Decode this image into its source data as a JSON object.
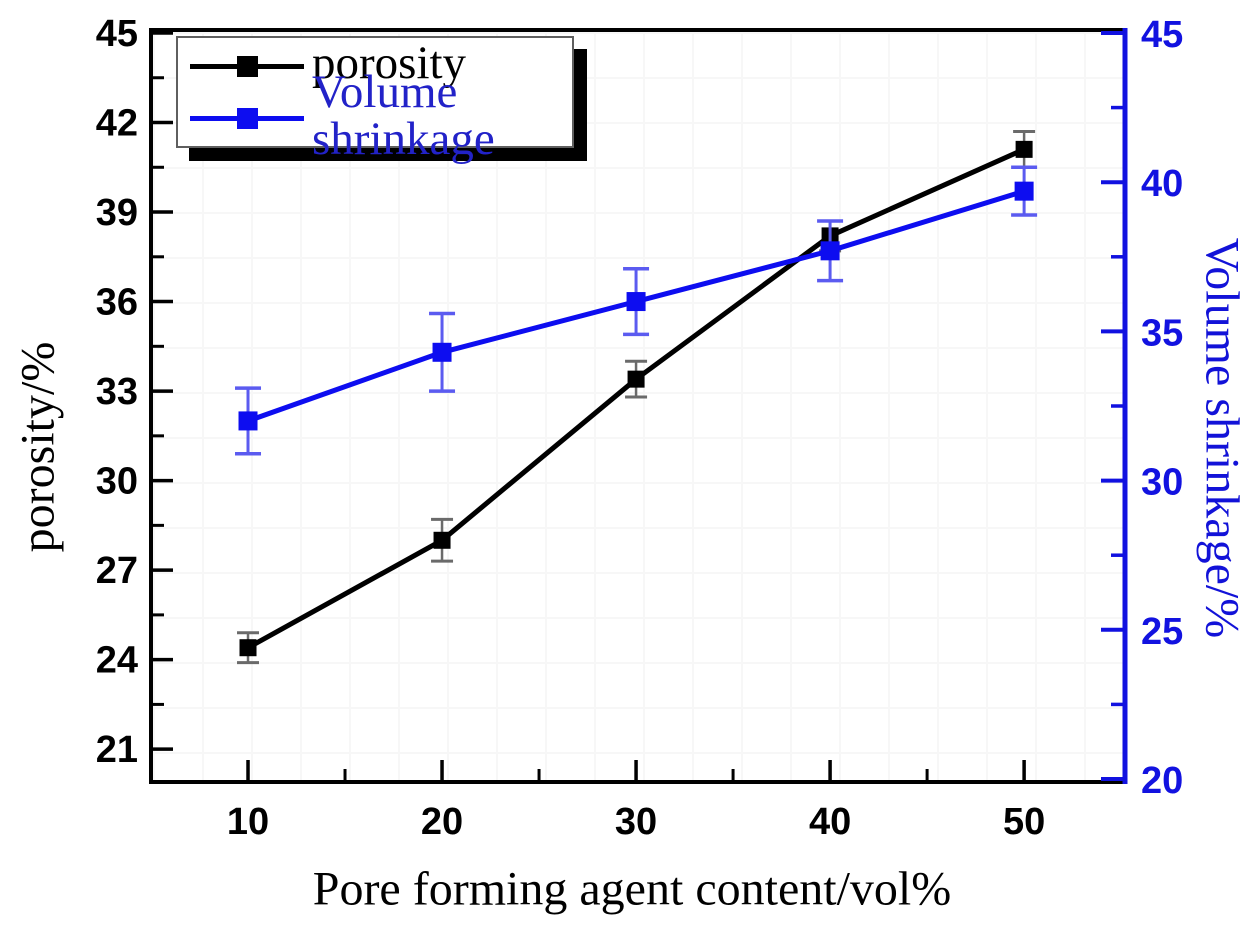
{
  "figure_name": "porosity-volume-shrinkage-line-chart",
  "chart_data": {
    "type": "line",
    "title": "",
    "x": {
      "label": "Pore forming agent content/vol%",
      "ticks": [
        10,
        20,
        30,
        40,
        50
      ],
      "minor_ticks": [
        15,
        25,
        35,
        45
      ],
      "range": [
        5.0,
        55.2
      ]
    },
    "axes": {
      "left": {
        "label": "porosity/%",
        "ticks": [
          21,
          24,
          27,
          30,
          33,
          36,
          39,
          42,
          45
        ],
        "minor_ticks": [
          22.5,
          25.5,
          28.5,
          31.5,
          34.5,
          37.5,
          40.5,
          43.5
        ],
        "range": [
          19.9,
          45.1
        ],
        "color": "#000000"
      },
      "right": {
        "label": "Volume shrinkage/%",
        "ticks": [
          20,
          25,
          30,
          35,
          40,
          45
        ],
        "minor_ticks": [
          22.5,
          27.5,
          32.5,
          37.5,
          42.5
        ],
        "range": [
          19.9,
          45.1
        ],
        "color": "#1111e0"
      }
    },
    "series": [
      {
        "name": "porosity",
        "axis": "left",
        "color": "#000000",
        "error_color": "#6a6a6a",
        "marker": "square",
        "marker_size": 17,
        "x": [
          10,
          20,
          30,
          40,
          50
        ],
        "values": [
          24.4,
          28.0,
          33.4,
          38.2,
          41.1
        ],
        "errors": [
          0.5,
          0.7,
          0.6,
          0.5,
          0.6
        ]
      },
      {
        "name": "Volume shrinkage",
        "axis": "right",
        "color": "#0d0df0",
        "error_color": "#5b5bf0",
        "marker": "square",
        "marker_size": 19,
        "x": [
          10,
          20,
          30,
          40,
          50
        ],
        "values": [
          32.0,
          34.3,
          36.0,
          37.7,
          39.7
        ],
        "errors": [
          1.1,
          1.3,
          1.1,
          1.0,
          0.8
        ]
      }
    ],
    "legend": {
      "position": "top-left",
      "items": [
        "porosity",
        "Volume shrinkage"
      ]
    },
    "grid": "very-faint minor grid",
    "frame": "full box, right axis drawn in blue, ticks point inward"
  }
}
